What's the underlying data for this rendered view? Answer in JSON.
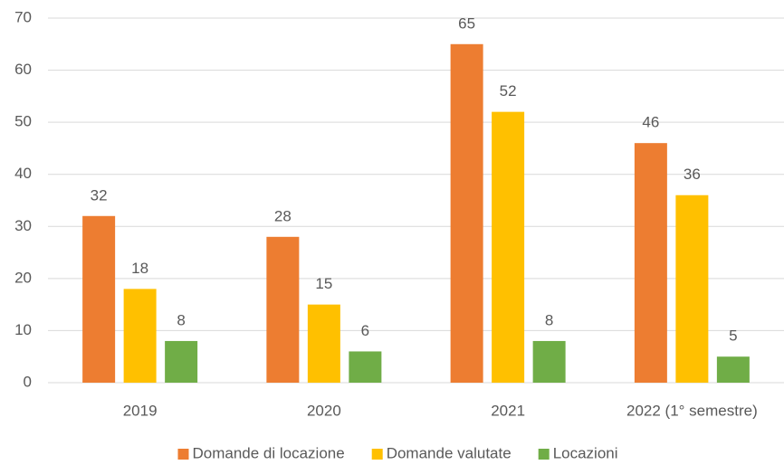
{
  "chart_data": {
    "type": "bar",
    "categories": [
      "2019",
      "2020",
      "2021",
      "2022 (1° semestre)"
    ],
    "series": [
      {
        "name": "Domande di locazione",
        "color": "#ed7d31",
        "values": [
          32,
          28,
          65,
          46
        ]
      },
      {
        "name": "Domande valutate",
        "color": "#ffc000",
        "values": [
          18,
          15,
          52,
          36
        ]
      },
      {
        "name": "Locazioni",
        "color": "#70ad47",
        "values": [
          8,
          6,
          8,
          5
        ]
      }
    ],
    "ylim": [
      0,
      70
    ],
    "yticks": [
      0,
      10,
      20,
      30,
      40,
      50,
      60,
      70
    ],
    "grid": true,
    "legend": "bottom"
  }
}
